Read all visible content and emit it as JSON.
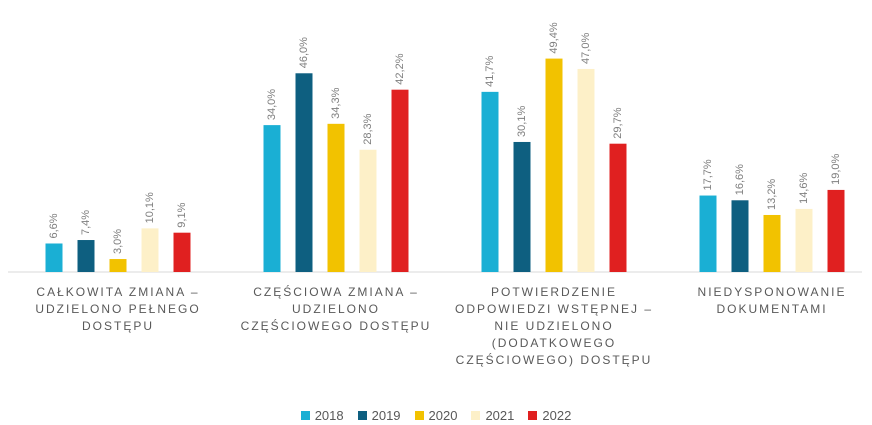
{
  "chart_data": {
    "type": "bar",
    "categories": [
      "CAŁKOWITA ZMIANA – UDZIELONO PEŁNEGO DOSTĘPU",
      "CZĘŚCIOWA ZMIANA – UDZIELONO CZĘŚCIOWEGO DOSTĘPU",
      "POTWIERDZENIE ODPOWIEDZI WSTĘPNEJ – NIE UDZIELONO (DODATKOWEGO CZĘŚCIOWEGO) DOSTĘPU",
      "NIEDYSPONOWANIE DOKUMENTAMI"
    ],
    "series": [
      {
        "name": "2018",
        "color": "#1aafd4",
        "values": [
          6.6,
          34.0,
          41.7,
          17.7
        ],
        "value_labels": [
          "6,6%",
          "34,0%",
          "41,7%",
          "17,7%"
        ]
      },
      {
        "name": "2019",
        "color": "#0e5f80",
        "values": [
          7.4,
          46.0,
          30.1,
          16.6
        ],
        "value_labels": [
          "7,4%",
          "46,0%",
          "30,1%",
          "16,6%"
        ]
      },
      {
        "name": "2020",
        "color": "#f2c200",
        "values": [
          3.0,
          34.3,
          49.4,
          13.2
        ],
        "value_labels": [
          "3,0%",
          "34,3%",
          "49,4%",
          "13,2%"
        ]
      },
      {
        "name": "2021",
        "color": "#fdf0c8",
        "values": [
          10.1,
          28.3,
          47.0,
          14.6
        ],
        "value_labels": [
          "10,1%",
          "28,3%",
          "47,0%",
          "14,6%"
        ]
      },
      {
        "name": "2022",
        "color": "#e02020",
        "values": [
          9.1,
          42.2,
          29.7,
          19.0
        ],
        "value_labels": [
          "9,1%",
          "42,2%",
          "29,7%",
          "19,0%"
        ]
      }
    ],
    "ylim": [
      0,
      50
    ],
    "legend": "bottom"
  }
}
